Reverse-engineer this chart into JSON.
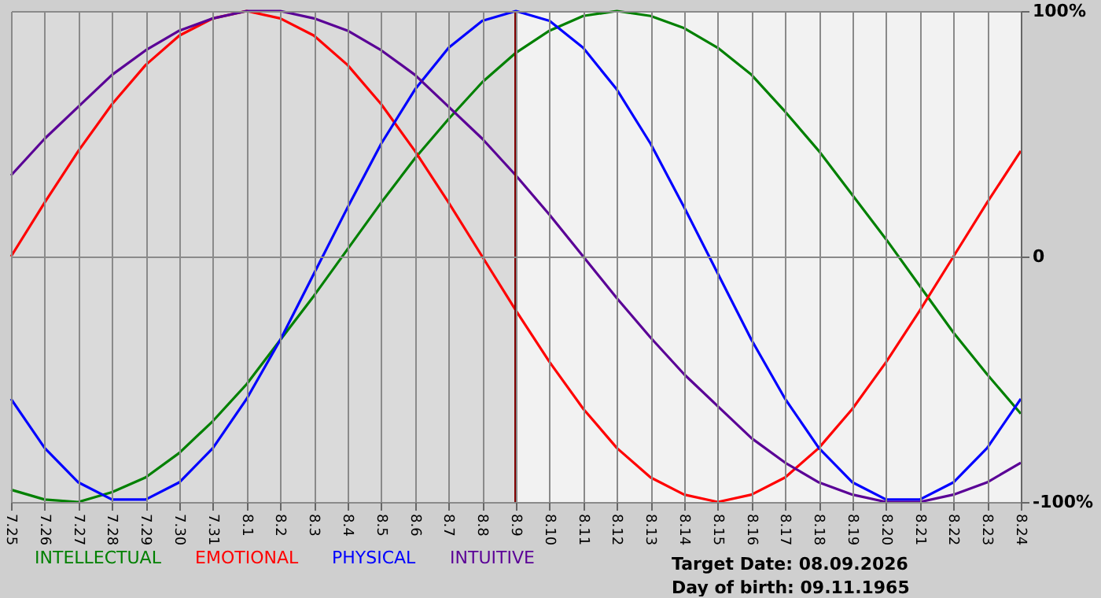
{
  "chart_data": {
    "type": "line",
    "categories": [
      "7.25",
      "7.26",
      "7.27",
      "7.28",
      "7.29",
      "7.30",
      "7.31",
      "8.1",
      "8.2",
      "8.3",
      "8.4",
      "8.5",
      "8.6",
      "8.7",
      "8.8",
      "8.9",
      "8.10",
      "8.11",
      "8.12",
      "8.13",
      "8.14",
      "8.15",
      "8.16",
      "8.17",
      "8.18",
      "8.19",
      "8.20",
      "8.21",
      "8.22",
      "8.23",
      "8.24"
    ],
    "series": [
      {
        "name": "INTELLECTUAL",
        "color": "#008000",
        "values": [
          -95,
          -99,
          -100,
          -96,
          -90,
          -80,
          -67,
          -52,
          -34,
          -16,
          3,
          22,
          40,
          56,
          71,
          83,
          92,
          98,
          100,
          98,
          93,
          85,
          74,
          59,
          43,
          25,
          7,
          -12,
          -31,
          -48,
          -64
        ]
      },
      {
        "name": "EMOTIONAL",
        "color": "#ff0000",
        "values": [
          0,
          22,
          43,
          62,
          78,
          90,
          97,
          100,
          97,
          90,
          78,
          62,
          43,
          22,
          0,
          -22,
          -43,
          -62,
          -78,
          -90,
          -97,
          -100,
          -97,
          -90,
          -78,
          -62,
          -43,
          -22,
          0,
          22,
          43
        ]
      },
      {
        "name": "PHYSICAL",
        "color": "#0000ff",
        "values": [
          -58,
          -78,
          -92,
          -99,
          -99,
          -92,
          -78,
          -58,
          -34,
          -7,
          20,
          46,
          68,
          85,
          96,
          100,
          96,
          85,
          68,
          46,
          20,
          -7,
          -34,
          -58,
          -78,
          -92,
          -99,
          -99,
          -92,
          -78,
          -58
        ]
      },
      {
        "name": "INTUITIVE",
        "color": "#5a0096",
        "values": [
          33,
          48,
          61,
          74,
          84,
          92,
          97,
          100,
          100,
          97,
          92,
          84,
          74,
          61,
          48,
          33,
          17,
          0,
          -17,
          -33,
          -48,
          -61,
          -74,
          -84,
          -92,
          -97,
          -100,
          -100,
          -97,
          -92,
          -84
        ]
      }
    ],
    "ylim": [
      -100,
      100
    ],
    "yticks": [
      {
        "value": -100,
        "label": "-100%"
      },
      0,
      {
        "value": 100,
        "label": "100%"
      }
    ],
    "grid": true,
    "legend": "bottom",
    "ref_lines": [
      {
        "axis": "x",
        "value": "8.9",
        "color": "#800000"
      }
    ],
    "bands": [
      {
        "axis": "x",
        "from": "7.25",
        "to": "8.9",
        "color": "#dadada"
      }
    ],
    "annotations": [
      "Target Date: 08.09.2026",
      "Day of birth: 09.11.1965"
    ]
  }
}
